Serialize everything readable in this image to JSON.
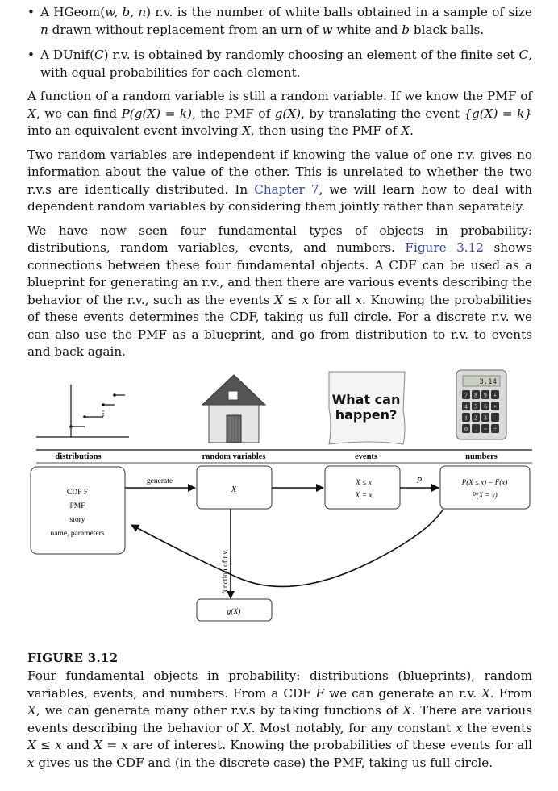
{
  "bullets": [
    {
      "dot": "•",
      "lead": "A HGeom(",
      "args": "w, b, n",
      "mid": ") r.v. is the number of white balls obtained in a sample of size ",
      "n": "n",
      "line2a": "drawn without replacement from an urn of ",
      "w": "w",
      "line2b": " white and ",
      "b": "b",
      "line2c": " black balls."
    },
    {
      "dot": "•",
      "lead": "A DUnif(",
      "C": "C",
      "mid": ") r.v. is obtained by randomly choosing an element of the finite set ",
      "C2": "C",
      "tail": ", with equal probabilities for each element."
    }
  ],
  "para1": {
    "a": "A function of a random variable is still a random variable. If we know the PMF of ",
    "X1": "X",
    "b": ", we can find ",
    "expr1": "P(g(X) = k)",
    "c": ", the PMF of ",
    "expr2": "g(X)",
    "d": ", by translating the event ",
    "expr3": "{g(X) = k}",
    "e": " into an equivalent event involving ",
    "X2": "X",
    "f": ", then using the PMF of ",
    "X3": "X",
    "g": "."
  },
  "para2": {
    "a": "Two random variables are independent if knowing the value of one r.v. gives no information about the value of the other. This is unrelated to whether the two r.v.s are identically distributed. In ",
    "link": "Chapter 7",
    "b": ", we will learn how to deal with dependent random variables by considering them jointly rather than separately."
  },
  "para3": {
    "a": "We have now seen four fundamental types of objects in probability: distributions, random variables, events, and numbers. ",
    "link": "Figure 3.12",
    "b": " shows connections between these four fundamental objects. A CDF can be used as a blueprint for generating an r.v., and then there are various events describing the behavior of the r.v., such as the events ",
    "expr": "X ≤ x",
    "c": " for all ",
    "x": "x",
    "d": ". Knowing the probabilities of these events determines the CDF, taking us full circle. For a discrete r.v. we can also use the PMF as a blueprint, and go from distribution to r.v. to events and back again."
  },
  "figure": {
    "headers": [
      "distributions",
      "random variables",
      "events",
      "numbers"
    ],
    "dist_box": [
      "CDF F",
      "PMF",
      "story",
      "name, parameters"
    ],
    "rv_box": "X",
    "events_box": [
      "X ≤ x",
      "X = x"
    ],
    "numbers_box": [
      "P(X ≤ x) = F(x)",
      "P(X = x)"
    ],
    "generate_label": "generate",
    "p_label": "P",
    "function_label": "function of r.v.",
    "gx_box": "g(X)",
    "sign_text": [
      "What can",
      "happen?"
    ],
    "calc_display": "3.14",
    "calc_keys": [
      "7",
      "8",
      "9",
      "+",
      "4",
      "5",
      "6",
      "×",
      "1",
      "2",
      "3",
      "−",
      "0",
      ".",
      "=",
      "÷"
    ],
    "colors": {
      "stroke": "#111111",
      "house_roof": "#555555",
      "house_body": "#e6e6e6",
      "sign_bg": "#f4f4f4",
      "calc_body": "#d9d9d9",
      "calc_key": "#333333",
      "link": "#2a44b8"
    }
  },
  "caption": {
    "title": "FIGURE 3.12",
    "a": "Four fundamental objects in probability: distributions (blueprints), random variables, events, and numbers. From a CDF ",
    "F": "F",
    "b": " we can generate an r.v. ",
    "X1": "X",
    "c": ". From ",
    "X2": "X",
    "d": ", we can generate many other r.v.s by taking functions of ",
    "X3": "X",
    "e": ". There are various events describing the behavior of ",
    "X4": "X",
    "f": ". Most notably, for any constant ",
    "x1": "x",
    "g": " the events ",
    "expr1": "X ≤ x",
    "h": " and ",
    "expr2": "X = x",
    "i": " are of interest. Knowing the probabilities of these events for all ",
    "x2": "x",
    "j": " gives us the CDF and (in the discrete case) the PMF, taking us full circle."
  }
}
